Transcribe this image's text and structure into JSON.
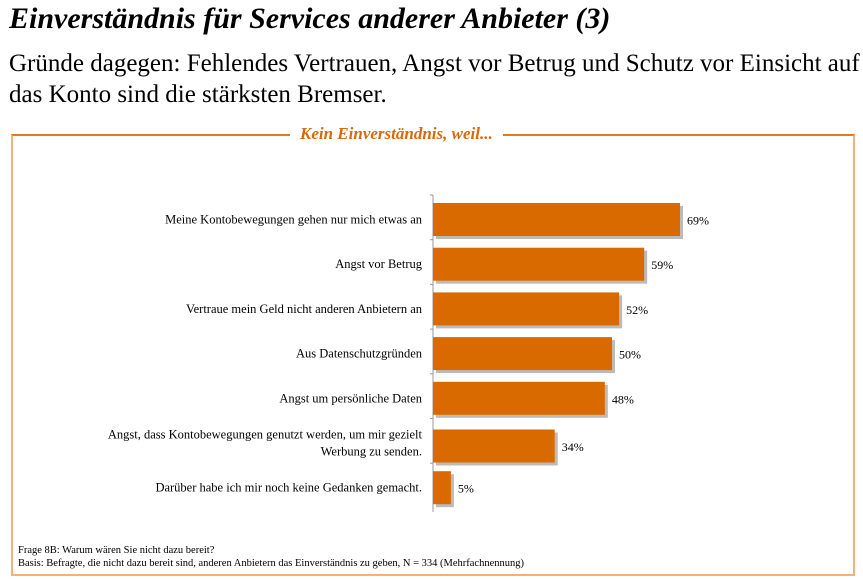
{
  "title": "Einverständnis für Services anderer Anbieter (3)",
  "subtitle": "Gründe dagegen: Fehlendes Vertrauen, Angst vor Betrug und Schutz vor Einsicht auf das Konto sind die stärksten Bremser.",
  "chart_data": {
    "type": "bar",
    "orientation": "horizontal",
    "title": "Kein Einverständnis, weil...",
    "categories": [
      "Meine Kontobewegungen gehen nur mich etwas an",
      "Angst vor Betrug",
      "Vertraue mein Geld nicht anderen Anbietern an",
      "Aus Datenschutzgründen",
      "Angst um persönliche Daten",
      "Angst, dass Kontobewegungen genutzt werden, um mir gezielt Werbung zu senden.",
      "Darüber habe ich mir noch keine Gedanken gemacht."
    ],
    "values": [
      69,
      59,
      52,
      50,
      48,
      34,
      5
    ],
    "data_labels": [
      "69%",
      "59%",
      "52%",
      "50%",
      "48%",
      "34%",
      "5%"
    ],
    "unit": "%",
    "bar_color": "#d96a00",
    "grid": false
  },
  "footnotes": {
    "question": "Frage 8B: Warum wären Sie nicht dazu bereit?",
    "basis": "Basis: Befragte, die nicht dazu bereit sind, anderen Anbietern das Einverständnis zu geben, N = 334 (Mehrfachnennung)"
  }
}
